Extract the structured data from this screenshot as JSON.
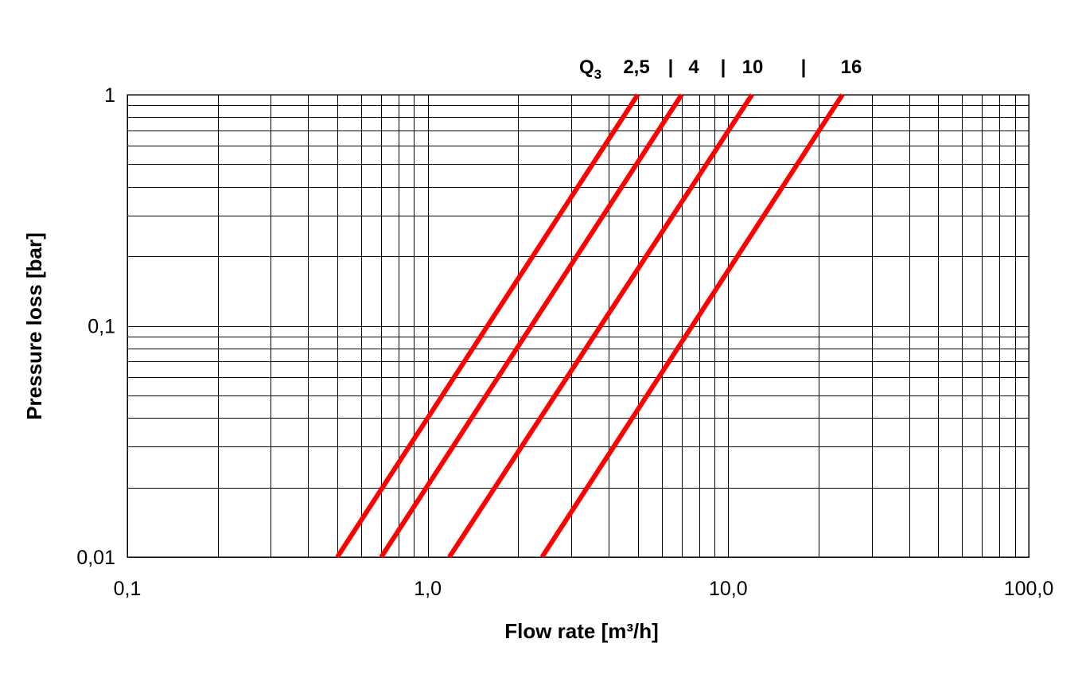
{
  "chart_data": {
    "type": "line",
    "title": "",
    "xlabel": "Flow rate [m³/h]",
    "ylabel": "Pressure loss [bar]",
    "xscale": "log",
    "yscale": "log",
    "xlim": [
      0.1,
      100
    ],
    "ylim": [
      0.01,
      1
    ],
    "grid": true,
    "x_ticks": [
      {
        "value": 0.1,
        "label": "0,1"
      },
      {
        "value": 1,
        "label": "1,0"
      },
      {
        "value": 10,
        "label": "10,0"
      },
      {
        "value": 100,
        "label": "100,0"
      }
    ],
    "y_ticks": [
      {
        "value": 0.01,
        "label": "0,01"
      },
      {
        "value": 0.1,
        "label": "0,1"
      },
      {
        "value": 1,
        "label": "1"
      }
    ],
    "series_header": {
      "prefix": "Q",
      "subscript": "3",
      "labels": [
        "2,5",
        "4",
        "10",
        "16"
      ],
      "separator": "|"
    },
    "series": [
      {
        "name": "2,5",
        "x": [
          0.5,
          5.0
        ],
        "y": [
          0.01,
          1
        ]
      },
      {
        "name": "4",
        "x": [
          0.7,
          7.0
        ],
        "y": [
          0.01,
          1
        ]
      },
      {
        "name": "10",
        "x": [
          1.18,
          12.0
        ],
        "y": [
          0.01,
          1
        ]
      },
      {
        "name": "16",
        "x": [
          2.4,
          24.0
        ],
        "y": [
          0.01,
          1
        ]
      }
    ],
    "line_color": "#ff0000"
  }
}
